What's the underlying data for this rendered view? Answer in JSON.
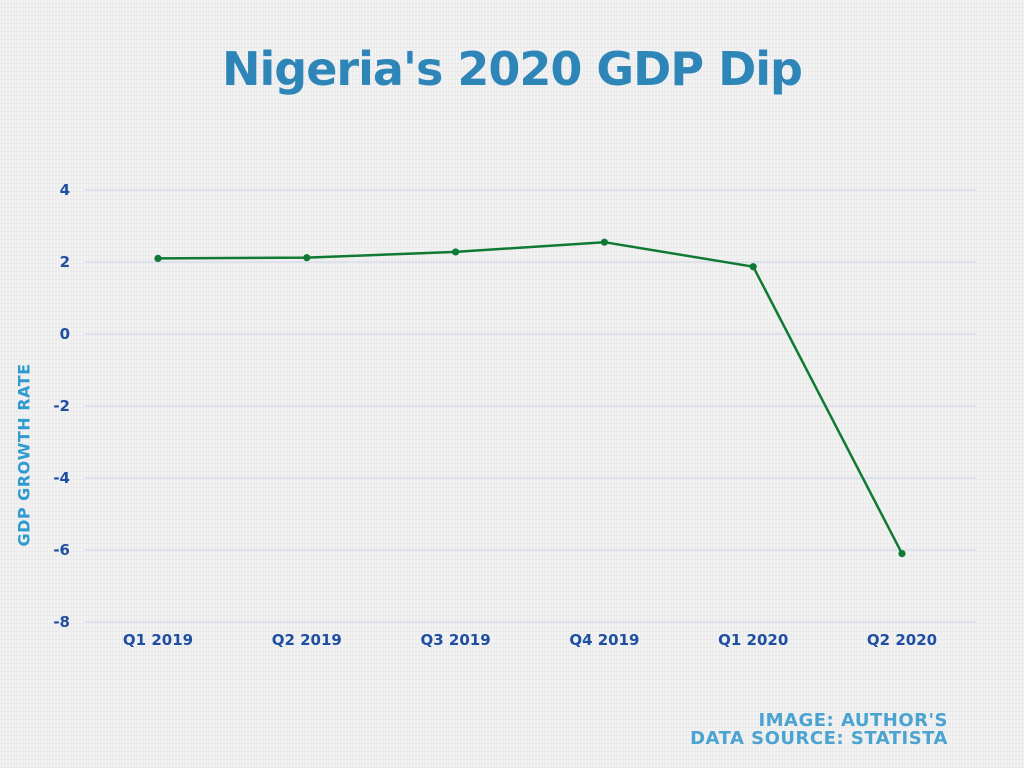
{
  "colors": {
    "title": "#2e86b8",
    "axis_label": "#2e9bcf",
    "tick_label": "#1f4fa3",
    "line": "#0f7a33",
    "grid": "#c9d3e6",
    "credit": "#4aa3d0"
  },
  "credits": {
    "line1": "IMAGE: AUTHOR'S",
    "line2": "DATA SOURCE: STATISTA"
  },
  "chart_data": {
    "type": "line",
    "title": "Nigeria's 2020 GDP Dip",
    "xlabel": "",
    "ylabel": "GDP GROWTH RATE",
    "categories": [
      "Q1 2019",
      "Q2 2019",
      "Q3 2019",
      "Q4 2019",
      "Q1 2020",
      "Q2 2020"
    ],
    "series": [
      {
        "values": [
          2.1,
          2.12,
          2.28,
          2.55,
          1.87,
          -6.1
        ]
      }
    ],
    "ylim": [
      -8,
      4
    ],
    "yticks": [
      4,
      2,
      0,
      -2,
      -4,
      -6,
      -8
    ],
    "grid": true,
    "legend": false,
    "markers": true
  }
}
